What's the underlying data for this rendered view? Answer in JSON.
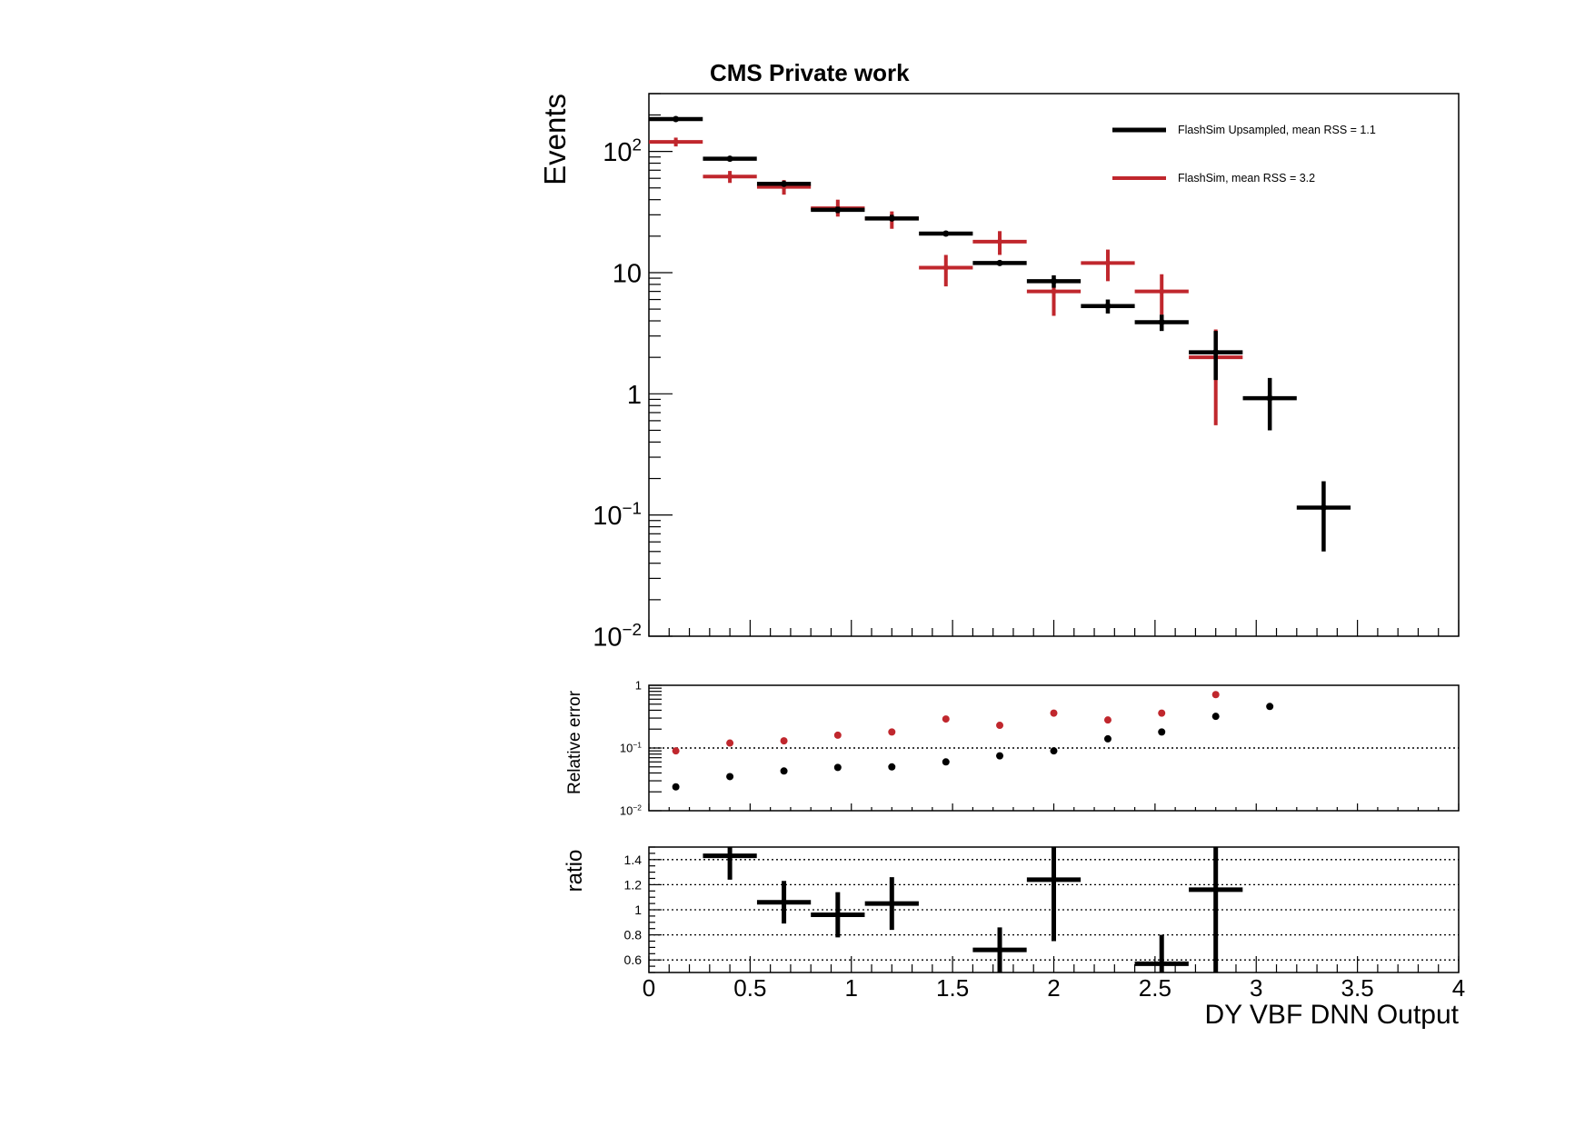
{
  "header": {
    "title": "CMS Private work"
  },
  "colors": {
    "upsampled": "#000000",
    "flashsim": "#c0272d",
    "axis": "#000000"
  },
  "chart_data": [
    {
      "type": "scatter",
      "name": "main",
      "ylabel": "Events",
      "yscale": "log",
      "ylim": [
        0.01,
        300
      ],
      "xlim": [
        0,
        4
      ],
      "y_tick_labels": [
        {
          "value": 100,
          "base": "10",
          "exp": "2"
        },
        {
          "value": 10,
          "base": "10",
          "exp": ""
        },
        {
          "value": 1,
          "base": "1",
          "exp": ""
        },
        {
          "value": 0.1,
          "base": "10",
          "exp": "−1"
        },
        {
          "value": 0.01,
          "base": "10",
          "exp": "−2"
        }
      ],
      "legend": {
        "placement": "top-right",
        "entries": [
          {
            "label": "FlashSim Upsampled, mean RSS = 1.1",
            "color": "#000000"
          },
          {
            "label": "FlashSim, mean RSS = 3.2",
            "color": "#c0272d"
          }
        ]
      },
      "series": [
        {
          "name": "FlashSim Upsampled",
          "color": "#000000",
          "x": [
            0.133,
            0.4,
            0.667,
            0.933,
            1.2,
            1.467,
            1.733,
            2.0,
            2.267,
            2.533,
            2.8,
            3.067,
            3.333
          ],
          "xerr": 0.133,
          "y": [
            185,
            87,
            54,
            33,
            28,
            21,
            12,
            8.5,
            5.3,
            3.9,
            2.2,
            0.92,
            0.115
          ],
          "y_low": [
            180,
            84,
            52,
            31,
            27,
            20,
            11.5,
            7.5,
            4.6,
            3.3,
            1.3,
            0.5,
            0.05
          ],
          "y_high": [
            190,
            90,
            56,
            35,
            30,
            22,
            12.5,
            9.5,
            6.0,
            4.5,
            3.3,
            1.35,
            0.19
          ]
        },
        {
          "name": "FlashSim",
          "color": "#c0272d",
          "x": [
            0.133,
            0.4,
            0.667,
            0.933,
            1.2,
            1.467,
            1.733,
            2.0,
            2.267,
            2.533,
            2.8
          ],
          "xerr": 0.133,
          "y": [
            120,
            62,
            51,
            34,
            28,
            11,
            18,
            7.0,
            12,
            7.0,
            2.0
          ],
          "y_low": [
            110,
            55,
            44,
            29,
            23,
            7.7,
            14,
            4.4,
            8.5,
            4.5,
            0.55
          ],
          "y_high": [
            130,
            69,
            58,
            40,
            32,
            14,
            22,
            9.5,
            15.5,
            9.7,
            3.4
          ]
        }
      ]
    },
    {
      "type": "scatter",
      "name": "relative-error",
      "ylabel": "Relative error",
      "yscale": "log",
      "ylim": [
        0.01,
        1
      ],
      "xlim": [
        0,
        4
      ],
      "reference_line": 0.1,
      "y_tick_labels": [
        {
          "value": 1,
          "base": "1",
          "exp": ""
        },
        {
          "value": 0.1,
          "base": "10",
          "exp": "−1"
        },
        {
          "value": 0.01,
          "base": "10",
          "exp": "−2"
        }
      ],
      "series": [
        {
          "name": "FlashSim",
          "color": "#c0272d",
          "x": [
            0.133,
            0.4,
            0.667,
            0.933,
            1.2,
            1.467,
            1.733,
            2.0,
            2.267,
            2.533,
            2.8
          ],
          "y": [
            0.09,
            0.12,
            0.13,
            0.16,
            0.18,
            0.29,
            0.23,
            0.36,
            0.28,
            0.36,
            0.71
          ]
        },
        {
          "name": "FlashSim Upsampled",
          "color": "#000000",
          "x": [
            0.133,
            0.4,
            0.667,
            0.933,
            1.2,
            1.467,
            1.733,
            2.0,
            2.267,
            2.533,
            2.8,
            3.067
          ],
          "y": [
            0.024,
            0.035,
            0.043,
            0.049,
            0.05,
            0.06,
            0.075,
            0.09,
            0.14,
            0.18,
            0.32,
            0.46
          ]
        }
      ]
    },
    {
      "type": "scatter",
      "name": "ratio",
      "ylabel": "ratio",
      "ylim": [
        0.5,
        1.5
      ],
      "xlim": [
        0,
        4
      ],
      "xlabel": "DY VBF DNN Output",
      "y_ticks": [
        0.6,
        0.8,
        1,
        1.2,
        1.4
      ],
      "y_tick_labels": [
        "0.6",
        "0.8",
        "1",
        "1.2",
        "1.4"
      ],
      "x_ticks": [
        0,
        0.5,
        1,
        1.5,
        2,
        2.5,
        3,
        3.5,
        4
      ],
      "x_tick_labels": [
        "0",
        "0.5",
        "1",
        "1.5",
        "2",
        "2.5",
        "3",
        "3.5",
        "4"
      ],
      "series": [
        {
          "name": "ratio",
          "color": "#000000",
          "x": [
            0.4,
            0.667,
            0.933,
            1.2,
            1.733,
            2.0,
            2.533,
            2.8
          ],
          "xerr": 0.133,
          "y": [
            1.43,
            1.06,
            0.96,
            1.05,
            0.68,
            1.24,
            0.57,
            1.16
          ],
          "y_low": [
            1.24,
            0.89,
            0.78,
            0.84,
            0.5,
            0.75,
            0.5,
            0.5
          ],
          "y_high": [
            1.5,
            1.23,
            1.14,
            1.26,
            0.86,
            1.5,
            0.8,
            1.5
          ]
        }
      ]
    }
  ]
}
